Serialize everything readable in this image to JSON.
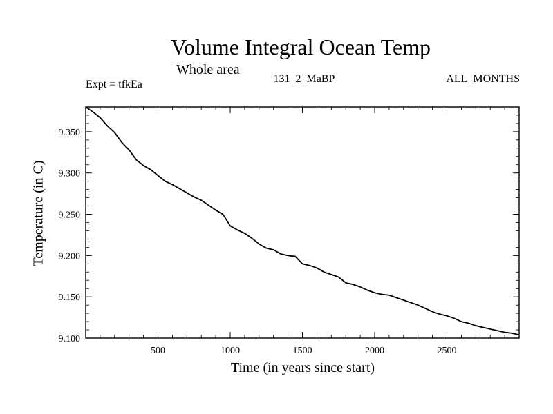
{
  "chart_data": {
    "type": "line",
    "title": "Volume Integral Ocean Temp",
    "subtitle": "Whole area",
    "left_annotation": "Expt = tfkEa",
    "center_annotation": "131_2_MaBP",
    "right_annotation": "ALL_MONTHS",
    "xlabel": "Time (in years since start)",
    "ylabel": "Temperature (in C)",
    "xlim": [
      0,
      3000
    ],
    "ylim": [
      9.1,
      9.38
    ],
    "x_ticks": [
      500,
      1000,
      1500,
      2000,
      2500
    ],
    "x_tick_labels": [
      "500",
      "1000",
      "1500",
      "2000",
      "2500"
    ],
    "y_ticks": [
      9.1,
      9.15,
      9.2,
      9.25,
      9.3,
      9.35
    ],
    "y_tick_labels": [
      "9.100",
      "9.150",
      "9.200",
      "9.250",
      "9.300",
      "9.350"
    ],
    "grid": false,
    "series": [
      {
        "x": [
          0,
          50,
          100,
          150,
          200,
          250,
          300,
          350,
          400,
          450,
          500,
          550,
          600,
          650,
          700,
          750,
          800,
          850,
          900,
          950,
          1000,
          1050,
          1100,
          1150,
          1200,
          1250,
          1300,
          1350,
          1400,
          1450,
          1500,
          1550,
          1600,
          1650,
          1700,
          1750,
          1800,
          1850,
          1900,
          1950,
          2000,
          2050,
          2100,
          2150,
          2200,
          2250,
          2300,
          2350,
          2400,
          2450,
          2500,
          2550,
          2600,
          2650,
          2700,
          2750,
          2800,
          2850,
          2900,
          2950,
          3000
        ],
        "values": [
          9.38,
          9.374,
          9.367,
          9.357,
          9.349,
          9.337,
          9.328,
          9.316,
          9.309,
          9.304,
          9.297,
          9.29,
          9.286,
          9.281,
          9.276,
          9.271,
          9.267,
          9.261,
          9.255,
          9.25,
          9.236,
          9.231,
          9.227,
          9.221,
          9.214,
          9.209,
          9.207,
          9.202,
          9.2,
          9.199,
          9.19,
          9.188,
          9.185,
          9.18,
          9.177,
          9.174,
          9.167,
          9.165,
          9.162,
          9.158,
          9.155,
          9.153,
          9.152,
          9.149,
          9.146,
          9.143,
          9.14,
          9.136,
          9.132,
          9.129,
          9.127,
          9.124,
          9.12,
          9.118,
          9.115,
          9.113,
          9.111,
          9.109,
          9.107,
          9.106,
          9.104
        ]
      }
    ]
  },
  "colors": {
    "line": "#000000",
    "axes": "#000000",
    "background": "#ffffff"
  }
}
